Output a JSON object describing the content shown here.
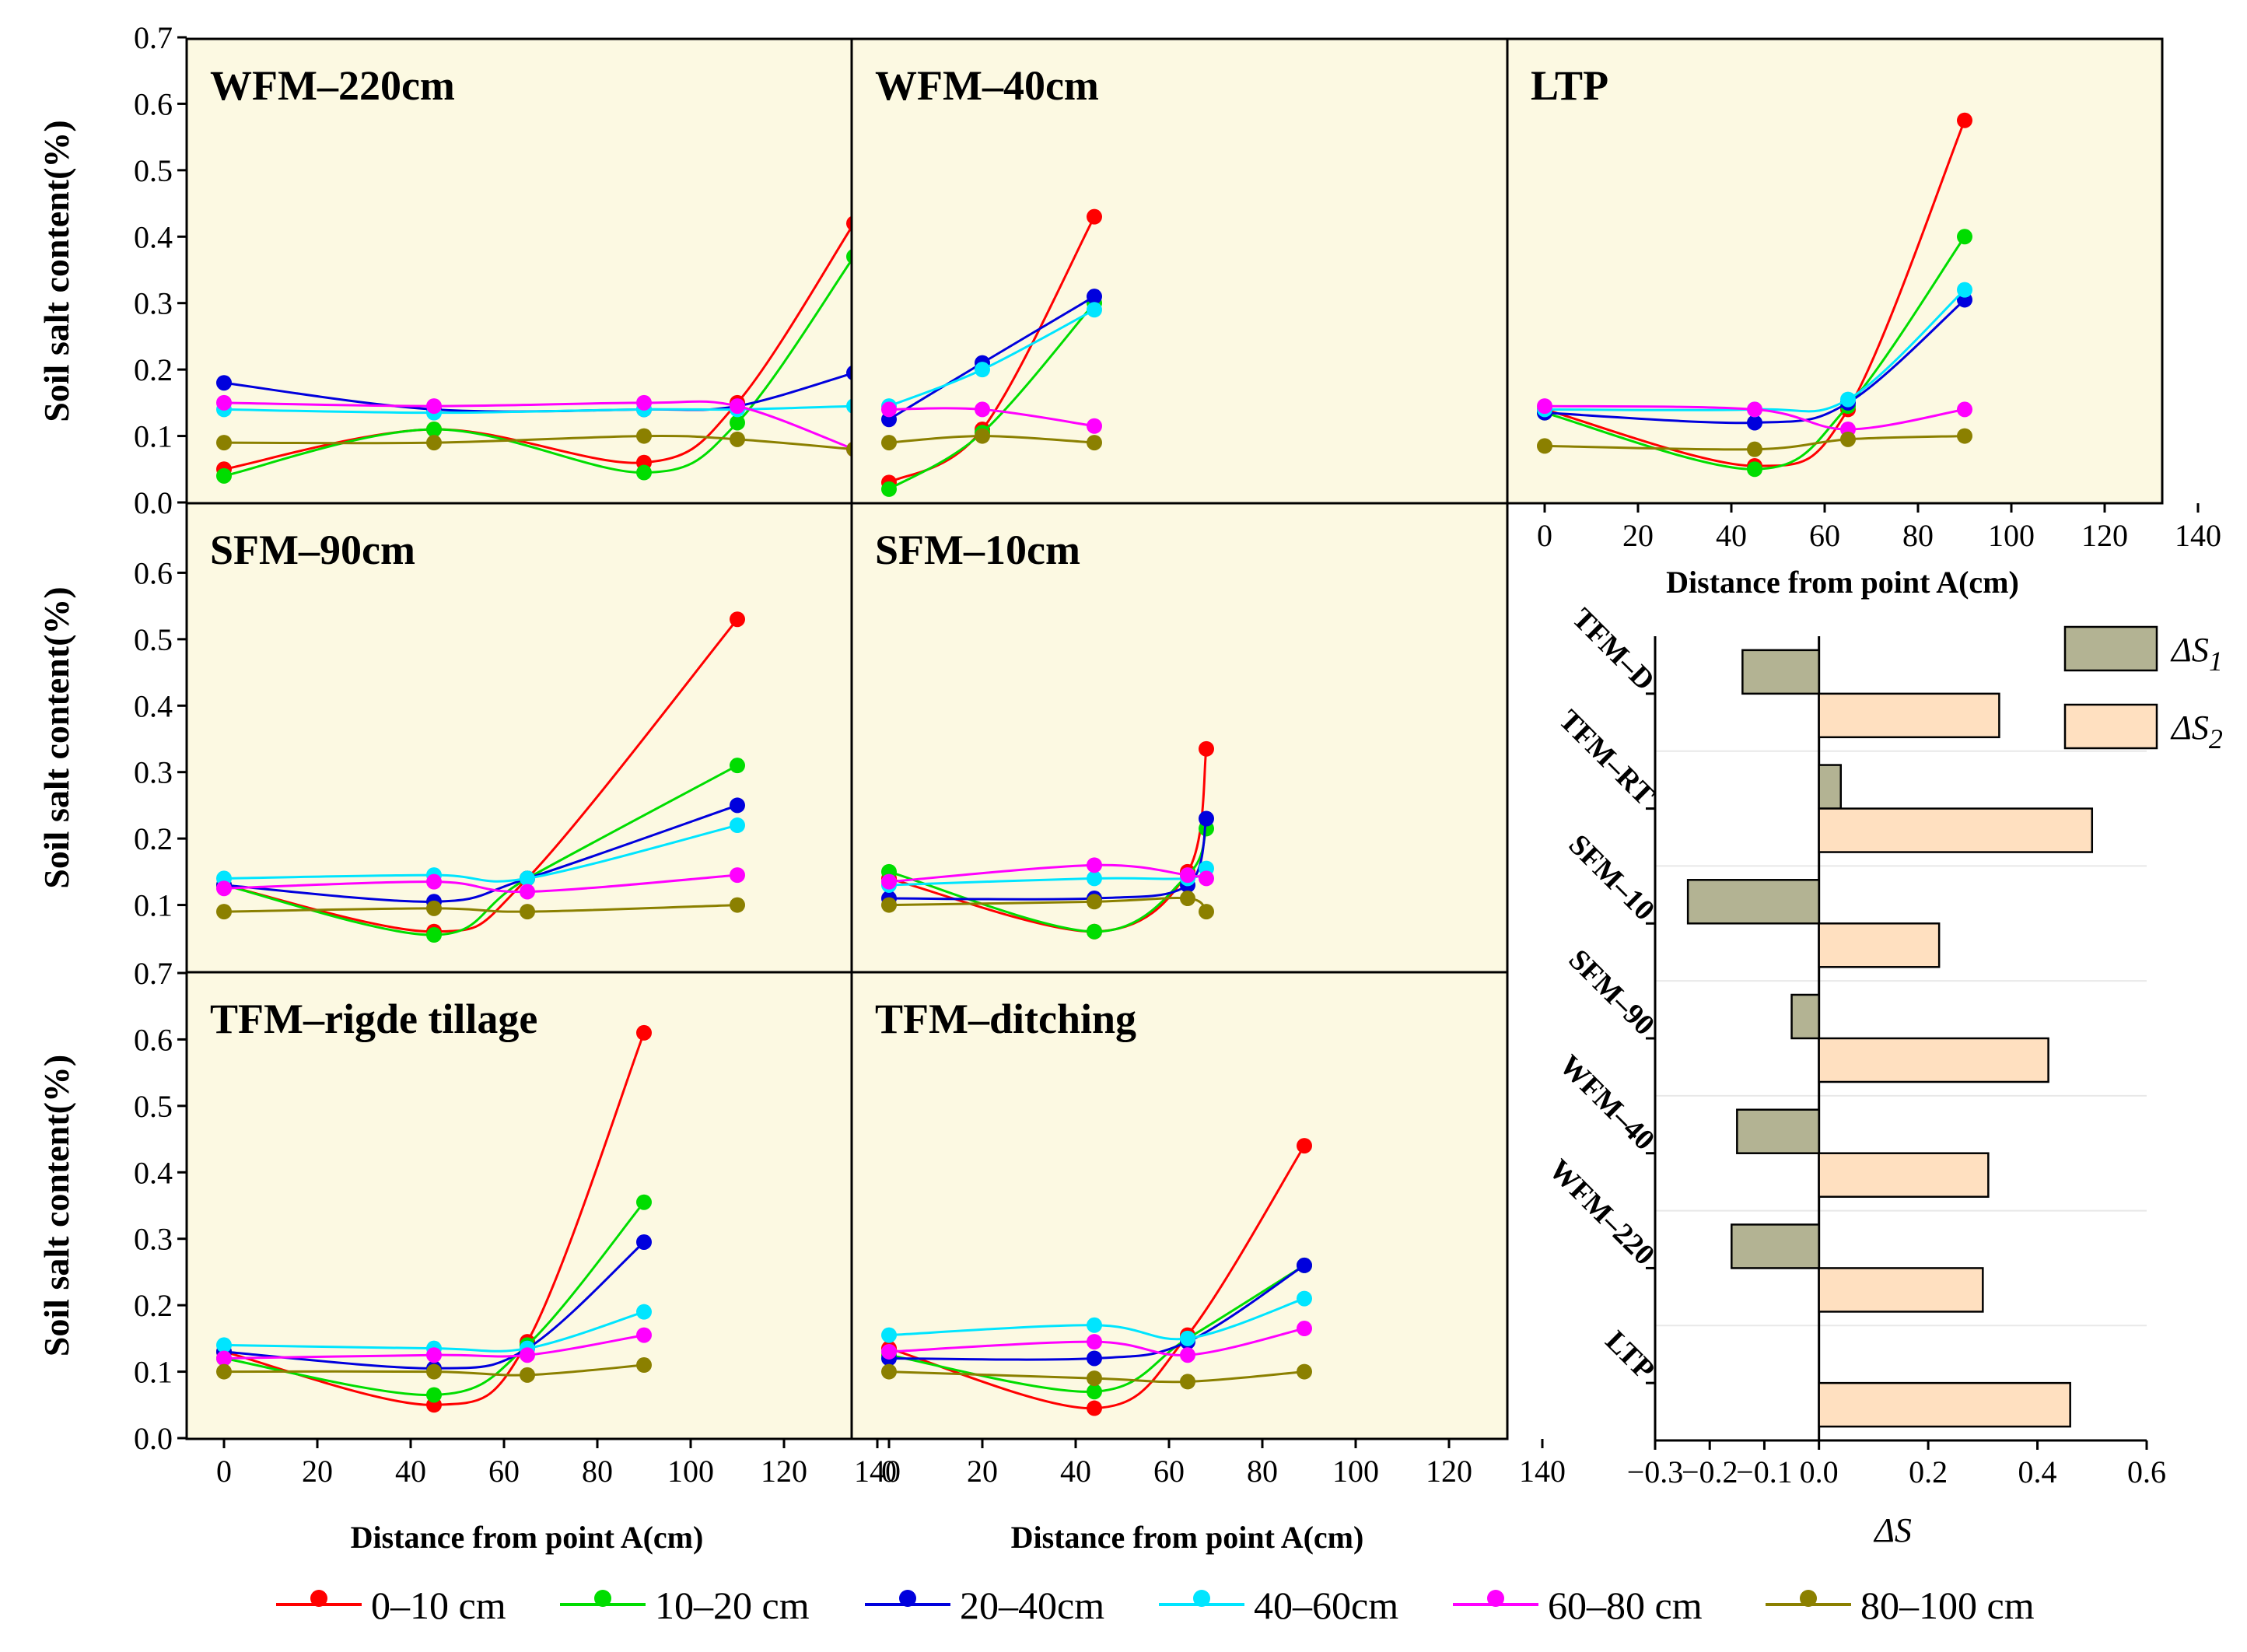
{
  "legend": [
    {
      "label": "0–10 cm",
      "color": "#ff0000"
    },
    {
      "label": "10–20 cm",
      "color": "#00dd00"
    },
    {
      "label": "20–40cm",
      "color": "#0000dd"
    },
    {
      "label": "40–60cm",
      "color": "#00e5ff"
    },
    {
      "label": "60–80 cm",
      "color": "#ff00ff"
    },
    {
      "label": "80–100 cm",
      "color": "#8b8000"
    }
  ],
  "chart_data": [
    {
      "type": "line",
      "title": "WFM–220cm",
      "xlabel": "",
      "ylabel": "Soil salt content(%)",
      "xlim": [
        0,
        140
      ],
      "ylim": [
        0,
        0.7
      ],
      "series": [
        {
          "name": "0–10 cm",
          "x": [
            0,
            45,
            90,
            110,
            135
          ],
          "y": [
            0.05,
            0.11,
            0.06,
            0.15,
            0.42
          ]
        },
        {
          "name": "10–20 cm",
          "x": [
            0,
            45,
            90,
            110,
            135
          ],
          "y": [
            0.04,
            0.11,
            0.045,
            0.12,
            0.37
          ]
        },
        {
          "name": "20–40cm",
          "x": [
            0,
            45,
            90,
            110,
            135
          ],
          "y": [
            0.18,
            0.14,
            0.14,
            0.145,
            0.195
          ]
        },
        {
          "name": "40–60cm",
          "x": [
            0,
            45,
            90,
            110,
            135
          ],
          "y": [
            0.14,
            0.135,
            0.14,
            0.14,
            0.145
          ]
        },
        {
          "name": "60–80 cm",
          "x": [
            0,
            45,
            90,
            110,
            135
          ],
          "y": [
            0.15,
            0.145,
            0.15,
            0.145,
            0.08
          ]
        },
        {
          "name": "80–100 cm",
          "x": [
            0,
            45,
            90,
            110,
            135
          ],
          "y": [
            0.09,
            0.09,
            0.1,
            0.095,
            0.08
          ]
        }
      ]
    },
    {
      "type": "line",
      "title": "WFM–40cm",
      "xlabel": "",
      "ylabel": "",
      "xlim": [
        0,
        140
      ],
      "ylim": [
        0,
        0.7
      ],
      "series": [
        {
          "name": "0–10 cm",
          "x": [
            0,
            20,
            44
          ],
          "y": [
            0.03,
            0.11,
            0.43
          ]
        },
        {
          "name": "10–20 cm",
          "x": [
            0,
            20,
            44
          ],
          "y": [
            0.02,
            0.105,
            0.3
          ]
        },
        {
          "name": "20–40cm",
          "x": [
            0,
            20,
            44
          ],
          "y": [
            0.125,
            0.21,
            0.31
          ]
        },
        {
          "name": "40–60cm",
          "x": [
            0,
            20,
            44
          ],
          "y": [
            0.145,
            0.2,
            0.29
          ]
        },
        {
          "name": "60–80 cm",
          "x": [
            0,
            20,
            44
          ],
          "y": [
            0.14,
            0.14,
            0.115
          ]
        },
        {
          "name": "80–100 cm",
          "x": [
            0,
            20,
            44
          ],
          "y": [
            0.09,
            0.1,
            0.09
          ]
        }
      ]
    },
    {
      "type": "line",
      "title": "LTP",
      "xlabel": "Distance from  point A(cm)",
      "ylabel": "",
      "xlim": [
        0,
        140
      ],
      "ylim": [
        0,
        0.7
      ],
      "series": [
        {
          "name": "0–10 cm",
          "x": [
            0,
            45,
            65,
            90
          ],
          "y": [
            0.14,
            0.055,
            0.14,
            0.575
          ]
        },
        {
          "name": "10–20 cm",
          "x": [
            0,
            45,
            65,
            90
          ],
          "y": [
            0.135,
            0.05,
            0.145,
            0.4
          ]
        },
        {
          "name": "20–40cm",
          "x": [
            0,
            45,
            65,
            90
          ],
          "y": [
            0.135,
            0.12,
            0.15,
            0.305
          ]
        },
        {
          "name": "40–60cm",
          "x": [
            0,
            45,
            65,
            90
          ],
          "y": [
            0.14,
            0.14,
            0.155,
            0.32
          ]
        },
        {
          "name": "60–80 cm",
          "x": [
            0,
            45,
            65,
            90
          ],
          "y": [
            0.145,
            0.14,
            0.11,
            0.14
          ]
        },
        {
          "name": "80–100 cm",
          "x": [
            0,
            45,
            65,
            90
          ],
          "y": [
            0.085,
            0.08,
            0.095,
            0.1
          ]
        }
      ]
    },
    {
      "type": "line",
      "title": "SFM–90cm",
      "xlabel": "",
      "ylabel": "Soil salt content(%)",
      "xlim": [
        0,
        140
      ],
      "ylim": [
        0,
        0.7
      ],
      "series": [
        {
          "name": "0–10 cm",
          "x": [
            0,
            45,
            65,
            110
          ],
          "y": [
            0.13,
            0.06,
            0.14,
            0.53
          ]
        },
        {
          "name": "10–20 cm",
          "x": [
            0,
            45,
            65,
            110
          ],
          "y": [
            0.13,
            0.055,
            0.14,
            0.31
          ]
        },
        {
          "name": "20–40cm",
          "x": [
            0,
            45,
            65,
            110
          ],
          "y": [
            0.13,
            0.105,
            0.14,
            0.25
          ]
        },
        {
          "name": "40–60cm",
          "x": [
            0,
            45,
            65,
            110
          ],
          "y": [
            0.14,
            0.145,
            0.14,
            0.22
          ]
        },
        {
          "name": "60–80 cm",
          "x": [
            0,
            45,
            65,
            110
          ],
          "y": [
            0.125,
            0.135,
            0.12,
            0.145
          ]
        },
        {
          "name": "80–100 cm",
          "x": [
            0,
            45,
            65,
            110
          ],
          "y": [
            0.09,
            0.095,
            0.09,
            0.1
          ]
        }
      ]
    },
    {
      "type": "line",
      "title": "SFM–10cm",
      "xlabel": "",
      "ylabel": "",
      "xlim": [
        0,
        140
      ],
      "ylim": [
        0,
        0.7
      ],
      "series": [
        {
          "name": "0–10 cm",
          "x": [
            0,
            44,
            64,
            68
          ],
          "y": [
            0.14,
            0.06,
            0.15,
            0.335
          ]
        },
        {
          "name": "10–20 cm",
          "x": [
            0,
            44,
            64,
            68
          ],
          "y": [
            0.15,
            0.06,
            0.145,
            0.215
          ]
        },
        {
          "name": "20–40cm",
          "x": [
            0,
            44,
            64,
            68
          ],
          "y": [
            0.11,
            0.11,
            0.13,
            0.23
          ]
        },
        {
          "name": "40–60cm",
          "x": [
            0,
            44,
            64,
            68
          ],
          "y": [
            0.13,
            0.14,
            0.14,
            0.155
          ]
        },
        {
          "name": "60–80 cm",
          "x": [
            0,
            44,
            64,
            68
          ],
          "y": [
            0.135,
            0.16,
            0.145,
            0.14
          ]
        },
        {
          "name": "80–100 cm",
          "x": [
            0,
            44,
            64,
            68
          ],
          "y": [
            0.1,
            0.105,
            0.11,
            0.09
          ]
        }
      ]
    },
    {
      "type": "line",
      "title": "TFM–rigde tillage",
      "xlabel": "Distance from  point A(cm)",
      "ylabel": "Soil salt content(%)",
      "xlim": [
        0,
        140
      ],
      "ylim": [
        0,
        0.7
      ],
      "series": [
        {
          "name": "0–10 cm",
          "x": [
            0,
            45,
            65,
            90
          ],
          "y": [
            0.13,
            0.05,
            0.145,
            0.61
          ]
        },
        {
          "name": "10–20 cm",
          "x": [
            0,
            45,
            65,
            90
          ],
          "y": [
            0.12,
            0.065,
            0.14,
            0.355
          ]
        },
        {
          "name": "20–40cm",
          "x": [
            0,
            45,
            65,
            90
          ],
          "y": [
            0.13,
            0.105,
            0.135,
            0.295
          ]
        },
        {
          "name": "40–60cm",
          "x": [
            0,
            45,
            65,
            90
          ],
          "y": [
            0.14,
            0.135,
            0.135,
            0.19
          ]
        },
        {
          "name": "60–80 cm",
          "x": [
            0,
            45,
            65,
            90
          ],
          "y": [
            0.12,
            0.125,
            0.125,
            0.155
          ]
        },
        {
          "name": "80–100 cm",
          "x": [
            0,
            45,
            65,
            90
          ],
          "y": [
            0.1,
            0.1,
            0.095,
            0.11
          ]
        }
      ]
    },
    {
      "type": "line",
      "title": "TFM–ditching",
      "xlabel": "Distance from  point A(cm)",
      "ylabel": "",
      "xlim": [
        0,
        140
      ],
      "ylim": [
        0,
        0.7
      ],
      "series": [
        {
          "name": "0–10 cm",
          "x": [
            0,
            44,
            64,
            89
          ],
          "y": [
            0.135,
            0.045,
            0.155,
            0.44
          ]
        },
        {
          "name": "10–20 cm",
          "x": [
            0,
            44,
            64,
            89
          ],
          "y": [
            0.125,
            0.07,
            0.15,
            0.26
          ]
        },
        {
          "name": "20–40cm",
          "x": [
            0,
            44,
            64,
            89
          ],
          "y": [
            0.12,
            0.12,
            0.145,
            0.26
          ]
        },
        {
          "name": "40–60cm",
          "x": [
            0,
            44,
            64,
            89
          ],
          "y": [
            0.155,
            0.17,
            0.15,
            0.21
          ]
        },
        {
          "name": "60–80 cm",
          "x": [
            0,
            44,
            64,
            89
          ],
          "y": [
            0.13,
            0.145,
            0.125,
            0.165
          ]
        },
        {
          "name": "80–100 cm",
          "x": [
            0,
            44,
            64,
            89
          ],
          "y": [
            0.1,
            0.09,
            0.085,
            0.1
          ]
        }
      ]
    },
    {
      "type": "bar",
      "orientation": "horizontal",
      "title": "",
      "xlabel": "ΔS",
      "ylabel": "",
      "xlim": [
        -0.3,
        0.6
      ],
      "categories": [
        "TFM–D",
        "TFM–RT",
        "SFM–10",
        "SFM–90",
        "WFM–40",
        "WFM–220",
        "LTP"
      ],
      "series": [
        {
          "name": "ΔS1",
          "color": "#b3b393",
          "values": [
            -0.14,
            0.04,
            -0.24,
            -0.05,
            -0.15,
            -0.16,
            0
          ]
        },
        {
          "name": "ΔS2",
          "color": "#ffe0c0",
          "values": [
            0.33,
            0.5,
            0.22,
            0.42,
            0.31,
            0.3,
            0.46
          ]
        }
      ],
      "legend_position": "top-right"
    }
  ],
  "ticks": {
    "salt_full": [
      "0.0",
      "0.1",
      "0.2",
      "0.3",
      "0.4",
      "0.5",
      "0.6",
      "0.7"
    ],
    "salt_mid": [
      "0.1",
      "0.2",
      "0.3",
      "0.4",
      "0.5",
      "0.6"
    ],
    "distance": [
      "0",
      "20",
      "40",
      "60",
      "80",
      "100",
      "120",
      "140"
    ],
    "delta": [
      "−0.3",
      "−0.2",
      "−0.1",
      "0.0",
      "0.2",
      "0.4",
      "0.6"
    ]
  }
}
